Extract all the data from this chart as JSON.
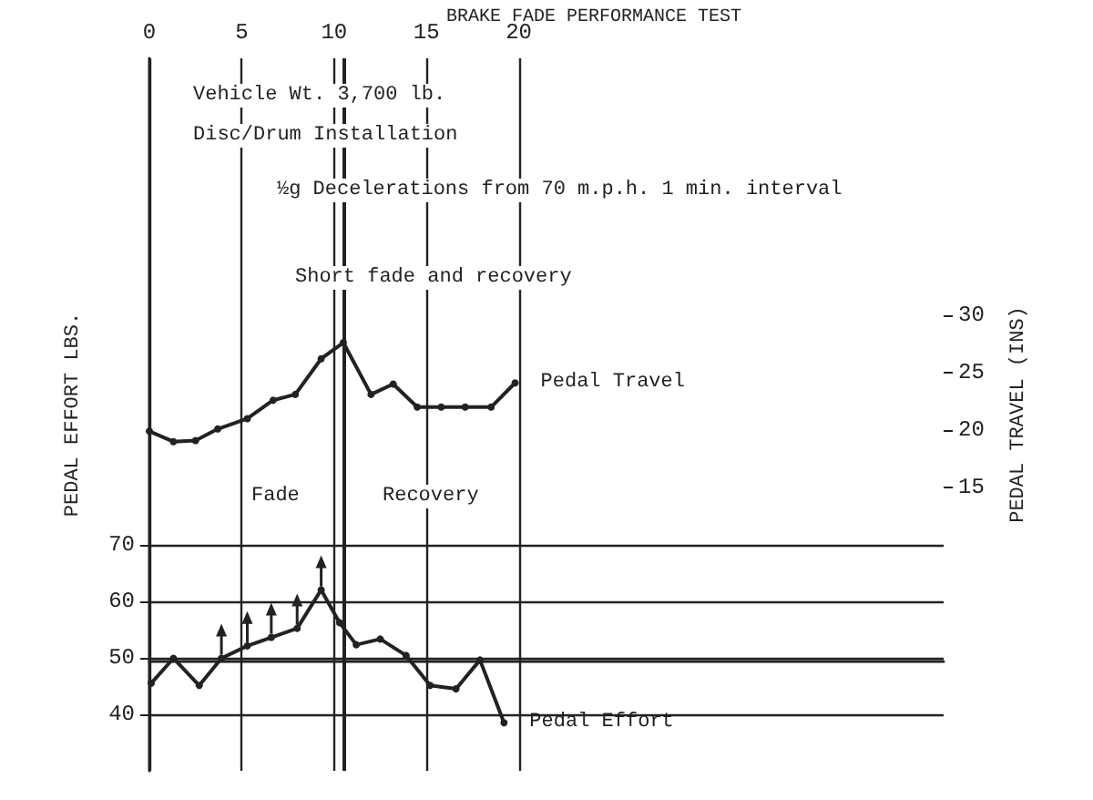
{
  "chart_data": {
    "type": "line",
    "title": "BRAKE FADE PERFORMANCE TEST",
    "ylabel": "PEDAL EFFORT LBS.",
    "y2label": "PEDAL TRAVEL (INS)",
    "xlim": [
      0,
      43
    ],
    "xticks": [
      0,
      5,
      10,
      15,
      20
    ],
    "ylim": [
      30,
      156
    ],
    "yticks": [
      40,
      50,
      60,
      70
    ],
    "y2lim": [
      -9.6,
      52.3
    ],
    "y2ticks": [
      15,
      20,
      25,
      30
    ],
    "grid": true,
    "legend": false,
    "marker": "circle",
    "line_style": "solid",
    "series": [
      {
        "name": "Pedal Travel",
        "color": "#222222",
        "axis": "y2",
        "x": [
          0,
          1.3,
          2.5,
          3.7,
          5.3,
          6.7,
          7.9,
          9.3,
          10.5,
          12.0,
          13.2,
          14.5,
          15.8,
          17.1,
          18.5,
          19.8
        ],
        "values": [
          19.9,
          19.0,
          19.1,
          20.1,
          21.0,
          22.6,
          23.1,
          26.2,
          27.6,
          23.1,
          24.0,
          22.0,
          22.0,
          22.0,
          22.0,
          24.1
        ]
      },
      {
        "name": "Pedal Effort",
        "color": "#222222",
        "x": [
          0.1,
          1.3,
          2.7,
          3.9,
          5.3,
          6.6,
          8.0,
          9.3,
          10.3,
          11.2,
          12.5,
          13.9,
          15.2,
          16.6,
          17.9,
          19.2
        ],
        "values": [
          45.5,
          49.9,
          45.1,
          49.9,
          52.1,
          53.6,
          55.2,
          62.0,
          56.2,
          52.3,
          53.3,
          50.4,
          45.1,
          44.5,
          49.6,
          38.5
        ]
      }
    ],
    "ref_lines": [
      {
        "axis": "x",
        "value": 10.5,
        "label": null,
        "color": "#222222",
        "line_style": "solid"
      }
    ],
    "annotations": [
      "Vehicle Wt. 3,700 lb.",
      "Disc/Drum Installation",
      "½g Decelerations from 70 m.p.h. 1 min. interval",
      "Short fade and recovery",
      "Fade",
      "Recovery"
    ]
  }
}
